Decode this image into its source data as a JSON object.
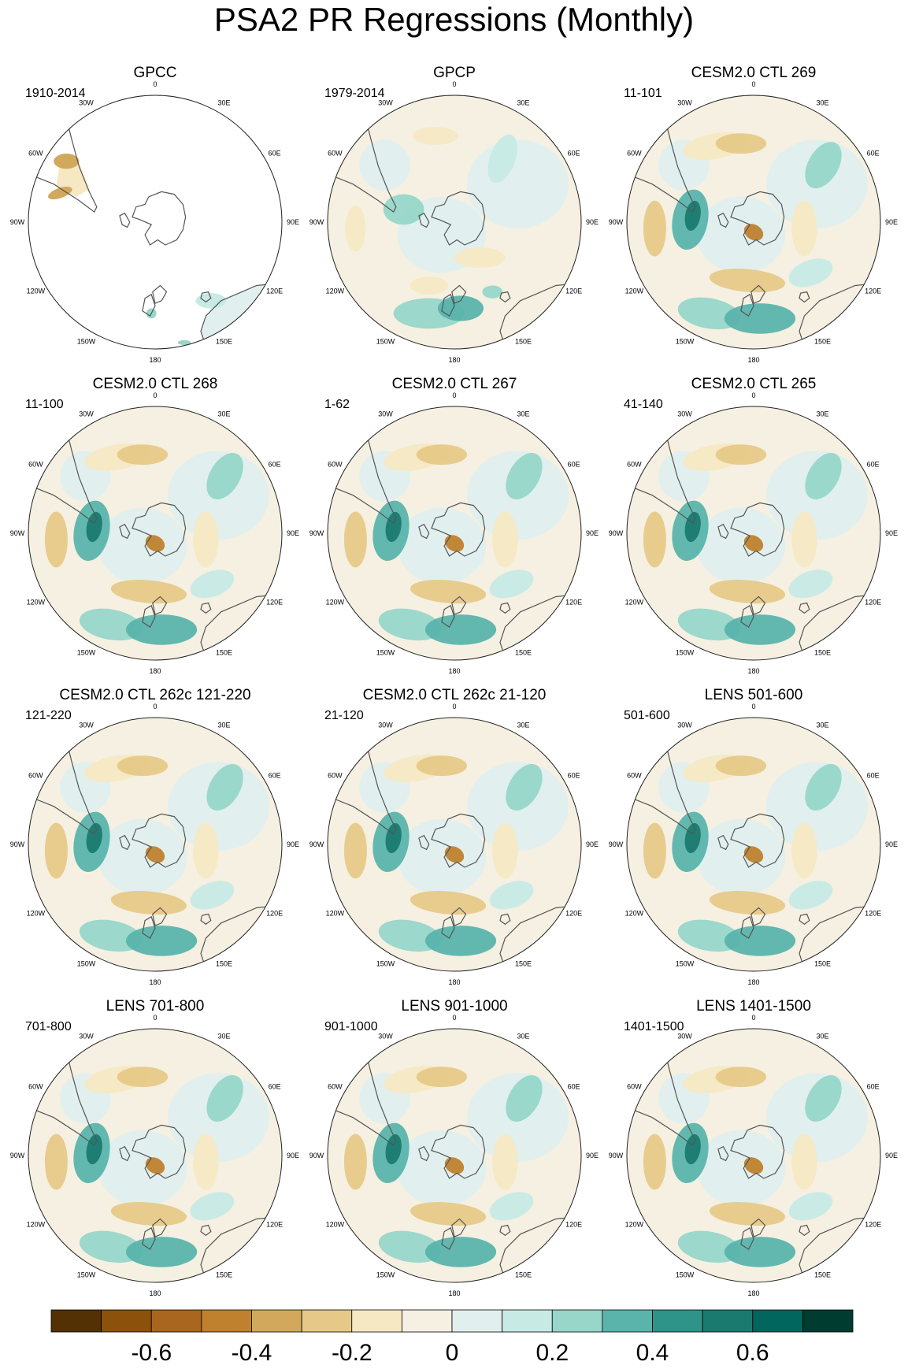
{
  "figure": {
    "title": "PSA2 PR Regressions (Monthly)"
  },
  "colors": {
    "land_outline": "#555555",
    "map_border": "#222222",
    "ocean_blank": "#ffffff"
  },
  "longitude_labels": [
    "0",
    "30E",
    "60E",
    "90E",
    "120E",
    "150E",
    "180",
    "150W",
    "120W",
    "90W",
    "60W",
    "30W"
  ],
  "panels": [
    {
      "title": "GPCC",
      "period": "1910-2014",
      "masked_ocean": true
    },
    {
      "title": "GPCP",
      "period": "1979-2014",
      "masked_ocean": false
    },
    {
      "title": "CESM2.0 CTL 269",
      "period": "11-101",
      "masked_ocean": false
    },
    {
      "title": "CESM2.0 CTL 268",
      "period": "11-100",
      "masked_ocean": false
    },
    {
      "title": "CESM2.0 CTL 267",
      "period": "1-62",
      "masked_ocean": false
    },
    {
      "title": "CESM2.0 CTL 265",
      "period": "41-140",
      "masked_ocean": false
    },
    {
      "title": "CESM2.0 CTL 262c 121-220",
      "period": "121-220",
      "masked_ocean": false
    },
    {
      "title": "CESM2.0 CTL 262c 21-120",
      "period": "21-120",
      "masked_ocean": false
    },
    {
      "title": "LENS 501-600",
      "period": "501-600",
      "masked_ocean": false
    },
    {
      "title": "LENS 701-800",
      "period": "701-800",
      "masked_ocean": false
    },
    {
      "title": "LENS 901-1000",
      "period": "901-1000",
      "masked_ocean": false
    },
    {
      "title": "LENS 1401-1500",
      "period": "1401-1500",
      "masked_ocean": false
    }
  ],
  "colorbar": {
    "colors": [
      "#543005",
      "#8c510a",
      "#a8661e",
      "#bf812d",
      "#d2a95c",
      "#e6c988",
      "#f6e8c3",
      "#f5f0e1",
      "#e1f0ee",
      "#c7eae5",
      "#97d6c9",
      "#5ab4ac",
      "#2e948a",
      "#1a7a70",
      "#01665e",
      "#003c30"
    ],
    "tick_labels": [
      "-0.6",
      "-0.4",
      "-0.2",
      "0",
      "0.2",
      "0.4",
      "0.6"
    ],
    "tick_values": [
      -0.6,
      -0.4,
      -0.2,
      0,
      0.2,
      0.4,
      0.6
    ],
    "range": [
      -0.8,
      0.8
    ]
  }
}
